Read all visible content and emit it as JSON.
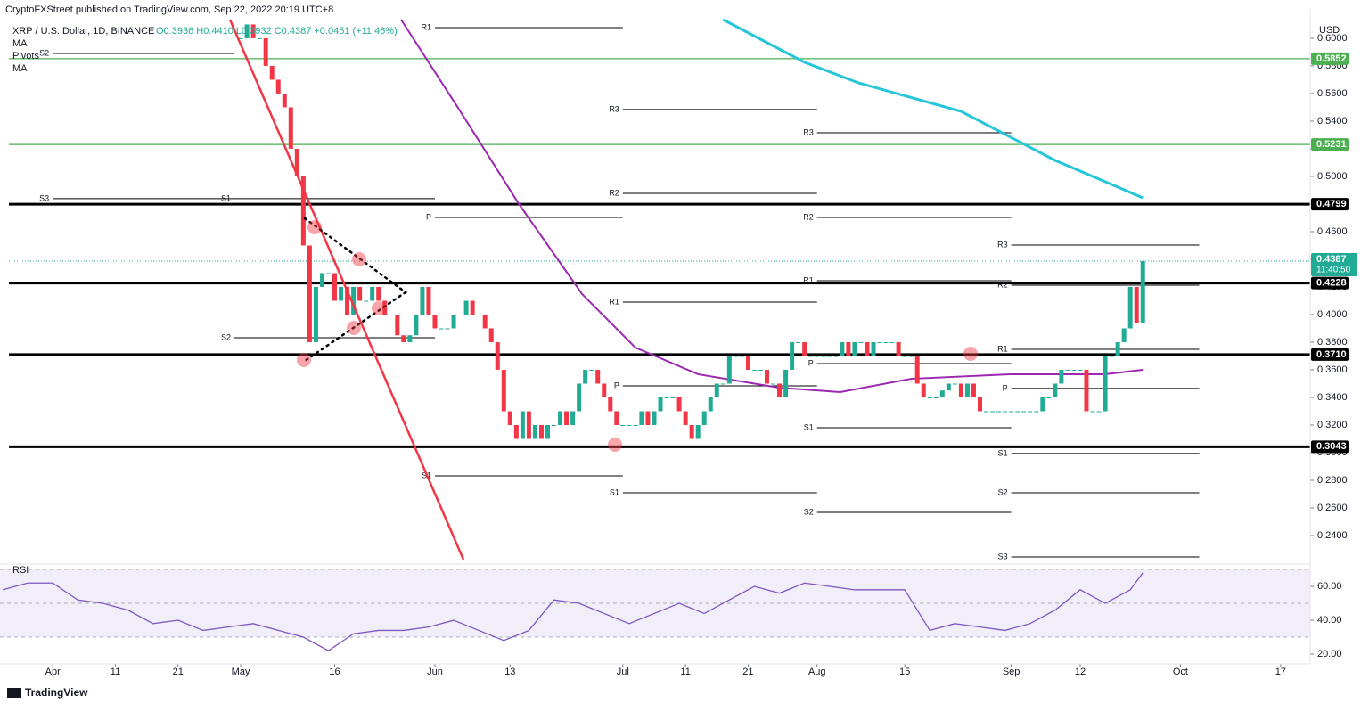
{
  "chart_data": {
    "type": "candlestick",
    "header": "CryptoFXStreet published on TradingView.com, Sep 22, 2022 20:19 UTC+8",
    "symbol": "XRP / U.S. Dollar, 1D, BINANCE",
    "ohlc_legend": "O0.3936 H0.4410 L0.3932 C0.4387 +0.0451 (+11.46%)",
    "indicators": [
      "MA",
      "Pivots",
      "MA"
    ],
    "currency": "USD",
    "brand": "TradingView",
    "up_color": "#22ab94",
    "down_color": "#f23645",
    "xlim": [
      -37,
      170
    ],
    "ylim": [
      0.2213,
      0.6135
    ],
    "yticks": [
      {
        "value": 0.24,
        "label": "0.2400"
      },
      {
        "value": 0.26,
        "label": "0.2600"
      },
      {
        "value": 0.28,
        "label": "0.2800"
      },
      {
        "value": 0.3,
        "label": "0.3000"
      },
      {
        "value": 0.32,
        "label": "0.3200"
      },
      {
        "value": 0.34,
        "label": "0.3400"
      },
      {
        "value": 0.36,
        "label": "0.3600"
      },
      {
        "value": 0.38,
        "label": "0.3800"
      },
      {
        "value": 0.4,
        "label": "0.4000"
      },
      {
        "value": 0.42,
        "label": "0.4200"
      },
      {
        "value": 0.44,
        "label": "0.4400"
      },
      {
        "value": 0.46,
        "label": "0.4600"
      },
      {
        "value": 0.48,
        "label": "0.4800"
      },
      {
        "value": 0.5,
        "label": "0.5000"
      },
      {
        "value": 0.52,
        "label": "0.5200"
      },
      {
        "value": 0.54,
        "label": "0.5400"
      },
      {
        "value": 0.56,
        "label": "0.5600"
      },
      {
        "value": 0.58,
        "label": "0.5800"
      },
      {
        "value": 0.6,
        "label": "0.6000"
      }
    ],
    "xticks": [
      {
        "value": -30,
        "label": "Apr"
      },
      {
        "value": -20,
        "label": "11"
      },
      {
        "value": -10,
        "label": "21"
      },
      {
        "value": 0,
        "label": "May"
      },
      {
        "value": 15,
        "label": "16"
      },
      {
        "value": 31,
        "label": "Jun"
      },
      {
        "value": 43,
        "label": "13"
      },
      {
        "value": 61,
        "label": "Jul"
      },
      {
        "value": 71,
        "label": "11"
      },
      {
        "value": 81,
        "label": "21"
      },
      {
        "value": 92,
        "label": "Aug"
      },
      {
        "value": 106,
        "label": "15"
      },
      {
        "value": 123,
        "label": "Sep"
      },
      {
        "value": 134,
        "label": "12"
      },
      {
        "value": 150,
        "label": "Oct"
      },
      {
        "value": 166,
        "label": "17"
      }
    ],
    "candles": {
      "close": [
        0.6,
        0.61,
        0.6,
        0.6,
        0.58,
        0.57,
        0.56,
        0.55,
        0.52,
        0.5,
        0.45,
        0.38,
        0.42,
        0.43,
        0.43,
        0.41,
        0.42,
        0.4,
        0.42,
        0.41,
        0.41,
        0.42,
        0.41,
        0.4,
        0.4,
        0.385,
        0.38,
        0.385,
        0.4,
        0.42,
        0.4,
        0.39,
        0.39,
        0.39,
        0.4,
        0.4,
        0.41,
        0.4,
        0.4,
        0.39,
        0.38,
        0.36,
        0.33,
        0.32,
        0.31,
        0.33,
        0.31,
        0.32,
        0.31,
        0.32,
        0.32,
        0.33,
        0.32,
        0.33,
        0.35,
        0.36,
        0.36,
        0.35,
        0.34,
        0.33,
        0.32,
        0.32,
        0.32,
        0.32,
        0.33,
        0.32,
        0.33,
        0.34,
        0.34,
        0.34,
        0.33,
        0.32,
        0.31,
        0.32,
        0.33,
        0.34,
        0.35,
        0.35,
        0.37,
        0.37,
        0.37,
        0.36,
        0.36,
        0.36,
        0.35,
        0.35,
        0.34,
        0.36,
        0.38,
        0.38,
        0.37,
        0.37,
        0.37,
        0.37,
        0.37,
        0.37,
        0.38,
        0.37,
        0.38,
        0.38,
        0.37,
        0.38,
        0.38,
        0.38,
        0.38,
        0.37,
        0.37,
        0.37,
        0.35,
        0.34,
        0.34,
        0.34,
        0.345,
        0.35,
        0.35,
        0.34,
        0.35,
        0.34,
        0.33,
        0.33,
        0.33,
        0.33,
        0.33,
        0.33,
        0.33,
        0.33,
        0.33,
        0.33,
        0.34,
        0.34,
        0.35,
        0.36,
        0.36,
        0.36,
        0.36,
        0.33,
        0.33,
        0.33,
        0.37,
        0.37,
        0.38,
        0.39,
        0.42,
        0.3936,
        0.4387
      ]
    },
    "moving_averages": [
      {
        "color": "#9c27b0",
        "x": [
          25.6,
          34.6,
          44.5,
          54.5,
          63,
          73,
          86,
          95.7,
          107,
          122.8,
          138,
          144
        ],
        "values": [
          0.6135,
          0.5503,
          0.4794,
          0.4148,
          0.3761,
          0.3568,
          0.347,
          0.3439,
          0.3535,
          0.3568,
          0.3568,
          0.36
        ]
      },
      {
        "color": "#26c6da",
        "x": [
          77,
          90,
          98.6,
          115,
          130,
          144
        ],
        "values": [
          0.6135,
          0.5826,
          0.5677,
          0.547,
          0.5116,
          0.4845
        ]
      }
    ],
    "levels": [
      {
        "value": 0.5852,
        "label": "0.5852",
        "color": "#4caf50"
      },
      {
        "value": 0.5231,
        "label": "0.5231",
        "color": "#4caf50"
      },
      {
        "value": 0.4799,
        "label": "0.4799",
        "color": "#000000"
      },
      {
        "value": 0.4228,
        "label": "0.4228",
        "color": "#000000"
      },
      {
        "value": 0.371,
        "label": "0.3710",
        "color": "#000000"
      },
      {
        "value": 0.3043,
        "label": "0.3043",
        "color": "#000000"
      }
    ],
    "last_price": {
      "value": 0.4387,
      "countdown": "11:40:50",
      "color": "#22ab94"
    },
    "pivots": [
      {
        "label": "S2",
        "value": 0.589,
        "from": -30,
        "to": -1
      },
      {
        "label": "S3",
        "value": 0.4839,
        "from": -30,
        "to": -1
      },
      {
        "label": "S1",
        "value": 0.4839,
        "from": -1,
        "to": 31
      },
      {
        "label": "S2",
        "value": 0.3832,
        "from": -1,
        "to": 31
      },
      {
        "label": "R1",
        "value": 0.6077,
        "from": 31,
        "to": 61
      },
      {
        "label": "P",
        "value": 0.4703,
        "from": 31,
        "to": 61
      },
      {
        "label": "S1",
        "value": 0.2832,
        "from": 31,
        "to": 61
      },
      {
        "label": "R3",
        "value": 0.5484,
        "from": 61,
        "to": 92
      },
      {
        "label": "R2",
        "value": 0.4877,
        "from": 61,
        "to": 92
      },
      {
        "label": "R1",
        "value": 0.409,
        "from": 61,
        "to": 92
      },
      {
        "label": "P",
        "value": 0.3484,
        "from": 61,
        "to": 92
      },
      {
        "label": "S1",
        "value": 0.271,
        "from": 61,
        "to": 92
      },
      {
        "label": "R3",
        "value": 0.5316,
        "from": 92,
        "to": 123
      },
      {
        "label": "R2",
        "value": 0.4703,
        "from": 92,
        "to": 123
      },
      {
        "label": "R1",
        "value": 0.4245,
        "from": 92,
        "to": 123
      },
      {
        "label": "P",
        "value": 0.3645,
        "from": 92,
        "to": 123
      },
      {
        "label": "S1",
        "value": 0.3181,
        "from": 92,
        "to": 123
      },
      {
        "label": "S2",
        "value": 0.2568,
        "from": 92,
        "to": 123
      },
      {
        "label": "R3",
        "value": 0.4503,
        "from": 123,
        "to": 153
      },
      {
        "label": "R2",
        "value": 0.4213,
        "from": 123,
        "to": 153
      },
      {
        "label": "R1",
        "value": 0.3748,
        "from": 123,
        "to": 153
      },
      {
        "label": "P",
        "value": 0.3465,
        "from": 123,
        "to": 153
      },
      {
        "label": "S1",
        "value": 0.2994,
        "from": 123,
        "to": 153
      },
      {
        "label": "S2",
        "value": 0.271,
        "from": 123,
        "to": 153
      },
      {
        "label": "S3",
        "value": 0.2245,
        "from": 123,
        "to": 153
      }
    ],
    "rsi": {
      "title": "RSI",
      "color": "#7e57c2",
      "ylim": [
        15.8,
        71.6
      ],
      "yticks": [
        {
          "value": 20,
          "label": "20.00"
        },
        {
          "value": 40,
          "label": "40.00"
        },
        {
          "value": 60,
          "label": "60.00"
        }
      ],
      "bands": [
        30,
        50,
        70
      ],
      "x": [
        -38,
        -34,
        -30,
        -26,
        -22,
        -18,
        -14,
        -10,
        -6,
        -2,
        2,
        6,
        10,
        14,
        18,
        22,
        26,
        30,
        34,
        38,
        42,
        46,
        50,
        54,
        58,
        62,
        66,
        70,
        74,
        78,
        82,
        86,
        90,
        94,
        98,
        102,
        106,
        110,
        114,
        118,
        122,
        126,
        130,
        134,
        138,
        142,
        144
      ],
      "values": [
        58,
        62,
        62,
        52,
        50,
        46,
        38,
        40,
        34,
        36,
        38,
        34,
        30,
        22,
        32,
        34,
        34,
        36,
        40,
        34,
        28,
        34,
        52,
        50,
        44,
        38,
        44,
        50,
        44,
        52,
        60,
        56,
        62,
        60,
        58,
        58,
        58,
        34,
        38,
        36,
        34,
        38,
        46,
        58,
        50,
        58,
        68
      ]
    }
  }
}
